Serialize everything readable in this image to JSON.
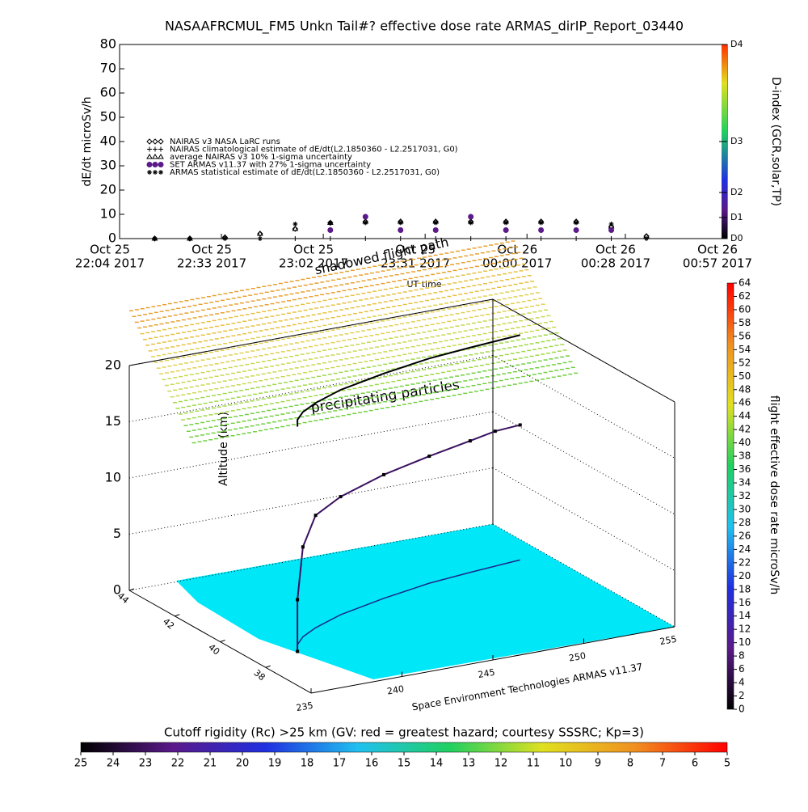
{
  "chart_data": [
    {
      "type": "scatter",
      "title": "NASAAFRCMUL_FM5 Unkn Tail#? effective dose rate ARMAS_dirIP_Report_03440",
      "y_label": "dE/dt microSv/h",
      "x_label": "UT time",
      "y2_label": "D-index (GCR,solar,TP)",
      "x": [
        "2017-10-25T22:14",
        "2017-10-25T22:24",
        "2017-10-25T22:34",
        "2017-10-25T22:44",
        "2017-10-25T22:54",
        "2017-10-25T23:04",
        "2017-10-25T23:14",
        "2017-10-25T23:24",
        "2017-10-25T23:34",
        "2017-10-25T23:44",
        "2017-10-25T23:54",
        "2017-10-26T00:04",
        "2017-10-26T00:14",
        "2017-10-26T00:24",
        "2017-10-26T00:34"
      ],
      "series": [
        {
          "name": "NAIRAS v3 NASA LaRC runs",
          "color": "#000000",
          "values": [
            0,
            0,
            0.5,
            2,
            4,
            6.5,
            7,
            7,
            7,
            7,
            7,
            7,
            7,
            5,
            1
          ]
        },
        {
          "name": "NAIRAS climatological estimate of dE/dt(L2.1850360 - L2.2517031, G0)",
          "color": "#000000",
          "values": [
            0,
            0,
            0,
            0,
            0,
            0,
            0,
            0,
            0,
            0,
            0,
            0,
            0,
            0,
            0
          ]
        },
        {
          "name": "average NAIRAS v3 10% 1-sigma uncertainty",
          "color": "#000000",
          "values": [
            0,
            0,
            0.5,
            2,
            4,
            6.5,
            7,
            7,
            7,
            7,
            7,
            7,
            7,
            5,
            1
          ]
        },
        {
          "name": "SET ARMAS v11.37 with 27% 1-sigma uncertainty",
          "color": "#5a1a8a",
          "values": [
            null,
            null,
            null,
            null,
            null,
            3.5,
            9,
            3.5,
            3.5,
            9,
            3.5,
            3.5,
            3.5,
            3.5,
            null
          ]
        },
        {
          "name": "ARMAS statistical estimate of dE/dt(L2.1850360 - L2.2517031, G0)",
          "color": "#000000",
          "values": [
            0,
            0,
            0,
            0,
            6,
            6.5,
            6.5,
            6.5,
            6.5,
            6.5,
            6.5,
            6.5,
            6.5,
            6,
            0
          ]
        }
      ],
      "xlim": [
        "2017-10-25T22:04",
        "2017-10-26T00:57"
      ],
      "xticks": [
        {
          "value": "2017-10-25T22:04",
          "label": [
            "Oct 25",
            "22:04 2017"
          ]
        },
        {
          "value": "2017-10-25T22:33",
          "label": [
            "Oct 25",
            "22:33 2017"
          ]
        },
        {
          "value": "2017-10-25T23:02",
          "label": [
            "Oct 25",
            "23:02 2017"
          ]
        },
        {
          "value": "2017-10-25T23:31",
          "label": [
            "Oct 25",
            "23:31 2017"
          ]
        },
        {
          "value": "2017-10-26T00:00",
          "label": [
            "Oct 26",
            "00:00 2017"
          ]
        },
        {
          "value": "2017-10-26T00:28",
          "label": [
            "Oct 26",
            "00:28 2017"
          ]
        },
        {
          "value": "2017-10-26T00:57",
          "label": [
            "Oct 26",
            "00:57 2017"
          ]
        }
      ],
      "ylim": [
        0,
        80
      ],
      "yticks": [
        0,
        10,
        20,
        30,
        40,
        50,
        60,
        70,
        80
      ],
      "y2lim": [
        0,
        80
      ],
      "y2ticks": [
        {
          "value": 0,
          "label": "D0"
        },
        {
          "value": 8.7,
          "label": "D1"
        },
        {
          "value": 19,
          "label": "D2"
        },
        {
          "value": 40,
          "label": "D3"
        },
        {
          "value": 80,
          "label": "D4"
        }
      ]
    },
    {
      "type": "scatter3d",
      "y_label": "Altitude (km)",
      "annotations": [
        "shadowed flight path",
        "precipitating particles",
        "Space Environment Technologies ARMAS v11.37"
      ],
      "x": [
        237.5,
        238,
        238.8,
        240,
        242,
        245,
        248,
        250.5,
        252,
        253.5
      ],
      "y": [
        38.6,
        39,
        39.4,
        39.8,
        40.3,
        40.8,
        41.2,
        41.4,
        41.5,
        41.6
      ],
      "z": [
        0,
        4,
        8,
        10,
        10.5,
        11,
        11.3,
        11.7,
        12,
        12
      ],
      "xlim": [
        235,
        255
      ],
      "xticks": [
        235,
        240,
        245,
        250,
        255
      ],
      "ylim": [
        36,
        44
      ],
      "yticks": [
        44,
        42,
        40,
        38
      ],
      "zlim": [
        0,
        20
      ],
      "zticks": [
        0,
        5,
        10,
        15,
        20
      ]
    },
    {
      "type": "colorbar",
      "y_label": "flight effective dose rate microSv/h",
      "colors": [
        "#000000",
        "#5a1a8a",
        "#2030e0",
        "#20c0f0",
        "#20d060",
        "#e0e020",
        "#f09020",
        "#ff0000"
      ],
      "ylim": [
        0,
        64
      ],
      "yticks": [
        0,
        2,
        4,
        6,
        8,
        10,
        12,
        14,
        16,
        18,
        20,
        22,
        24,
        26,
        28,
        30,
        32,
        34,
        36,
        38,
        40,
        42,
        44,
        46,
        48,
        50,
        52,
        54,
        56,
        58,
        60,
        62,
        64
      ]
    },
    {
      "type": "colorbar",
      "x_label": "Cutoff rigidity (Rc) >25 km (GV: red = greatest hazard; courtesy SSSRC; Kp=3)",
      "colors": [
        "#000000",
        "#5a1a8a",
        "#2030e0",
        "#20c0f0",
        "#20d060",
        "#e0e020",
        "#f09020",
        "#ff0000"
      ],
      "xlim": [
        25,
        5
      ],
      "xticks": [
        25,
        24,
        23,
        22,
        21,
        20,
        19,
        18,
        17,
        16,
        15,
        14,
        13,
        12,
        11,
        10,
        9,
        8,
        7,
        6,
        5
      ]
    }
  ]
}
